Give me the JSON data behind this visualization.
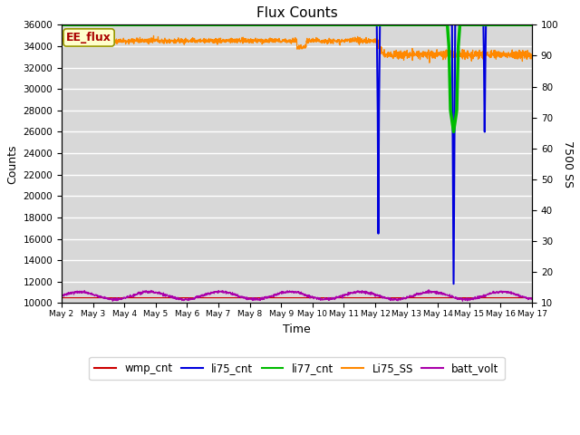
{
  "title": "Flux Counts",
  "xlabel": "Time",
  "ylabel_left": "Counts",
  "ylabel_right": "7500 SS",
  "xlim": [
    0,
    15
  ],
  "ylim_left": [
    10000,
    36000
  ],
  "ylim_right": [
    10,
    100
  ],
  "yticks_left": [
    10000,
    12000,
    14000,
    16000,
    18000,
    20000,
    22000,
    24000,
    26000,
    28000,
    30000,
    32000,
    34000,
    36000
  ],
  "yticks_right": [
    10,
    20,
    30,
    40,
    50,
    60,
    70,
    80,
    90,
    100
  ],
  "xtick_labels": [
    "May 2",
    "May 3",
    "May 4",
    "May 5",
    "May 6",
    "May 7",
    "May 8",
    "May 9",
    "May 10",
    "May 11",
    "May 12",
    "May 13",
    "May 14",
    "May 15",
    "May 16",
    "May 17"
  ],
  "annotation_text": "EE_flux",
  "annotation_color": "#aa0000",
  "annotation_bg": "#ffffcc",
  "annotation_edge": "#999900",
  "plot_bg_color": "#d8d8d8",
  "fig_bg_color": "#ffffff",
  "legend_entries": [
    "wmp_cnt",
    "li75_cnt",
    "li77_cnt",
    "Li75_SS",
    "batt_volt"
  ],
  "legend_colors": [
    "#cc0000",
    "#0000dd",
    "#00bb00",
    "#ff8800",
    "#aa00aa"
  ],
  "grid_color": "#ffffff",
  "li75_ss_base": 34500,
  "li75_ss_base2": 33200,
  "li75_ss_noise": 120,
  "batt_base": 10700,
  "batt_amp": 350,
  "batt_freq": 2.8,
  "batt_noise": 60
}
